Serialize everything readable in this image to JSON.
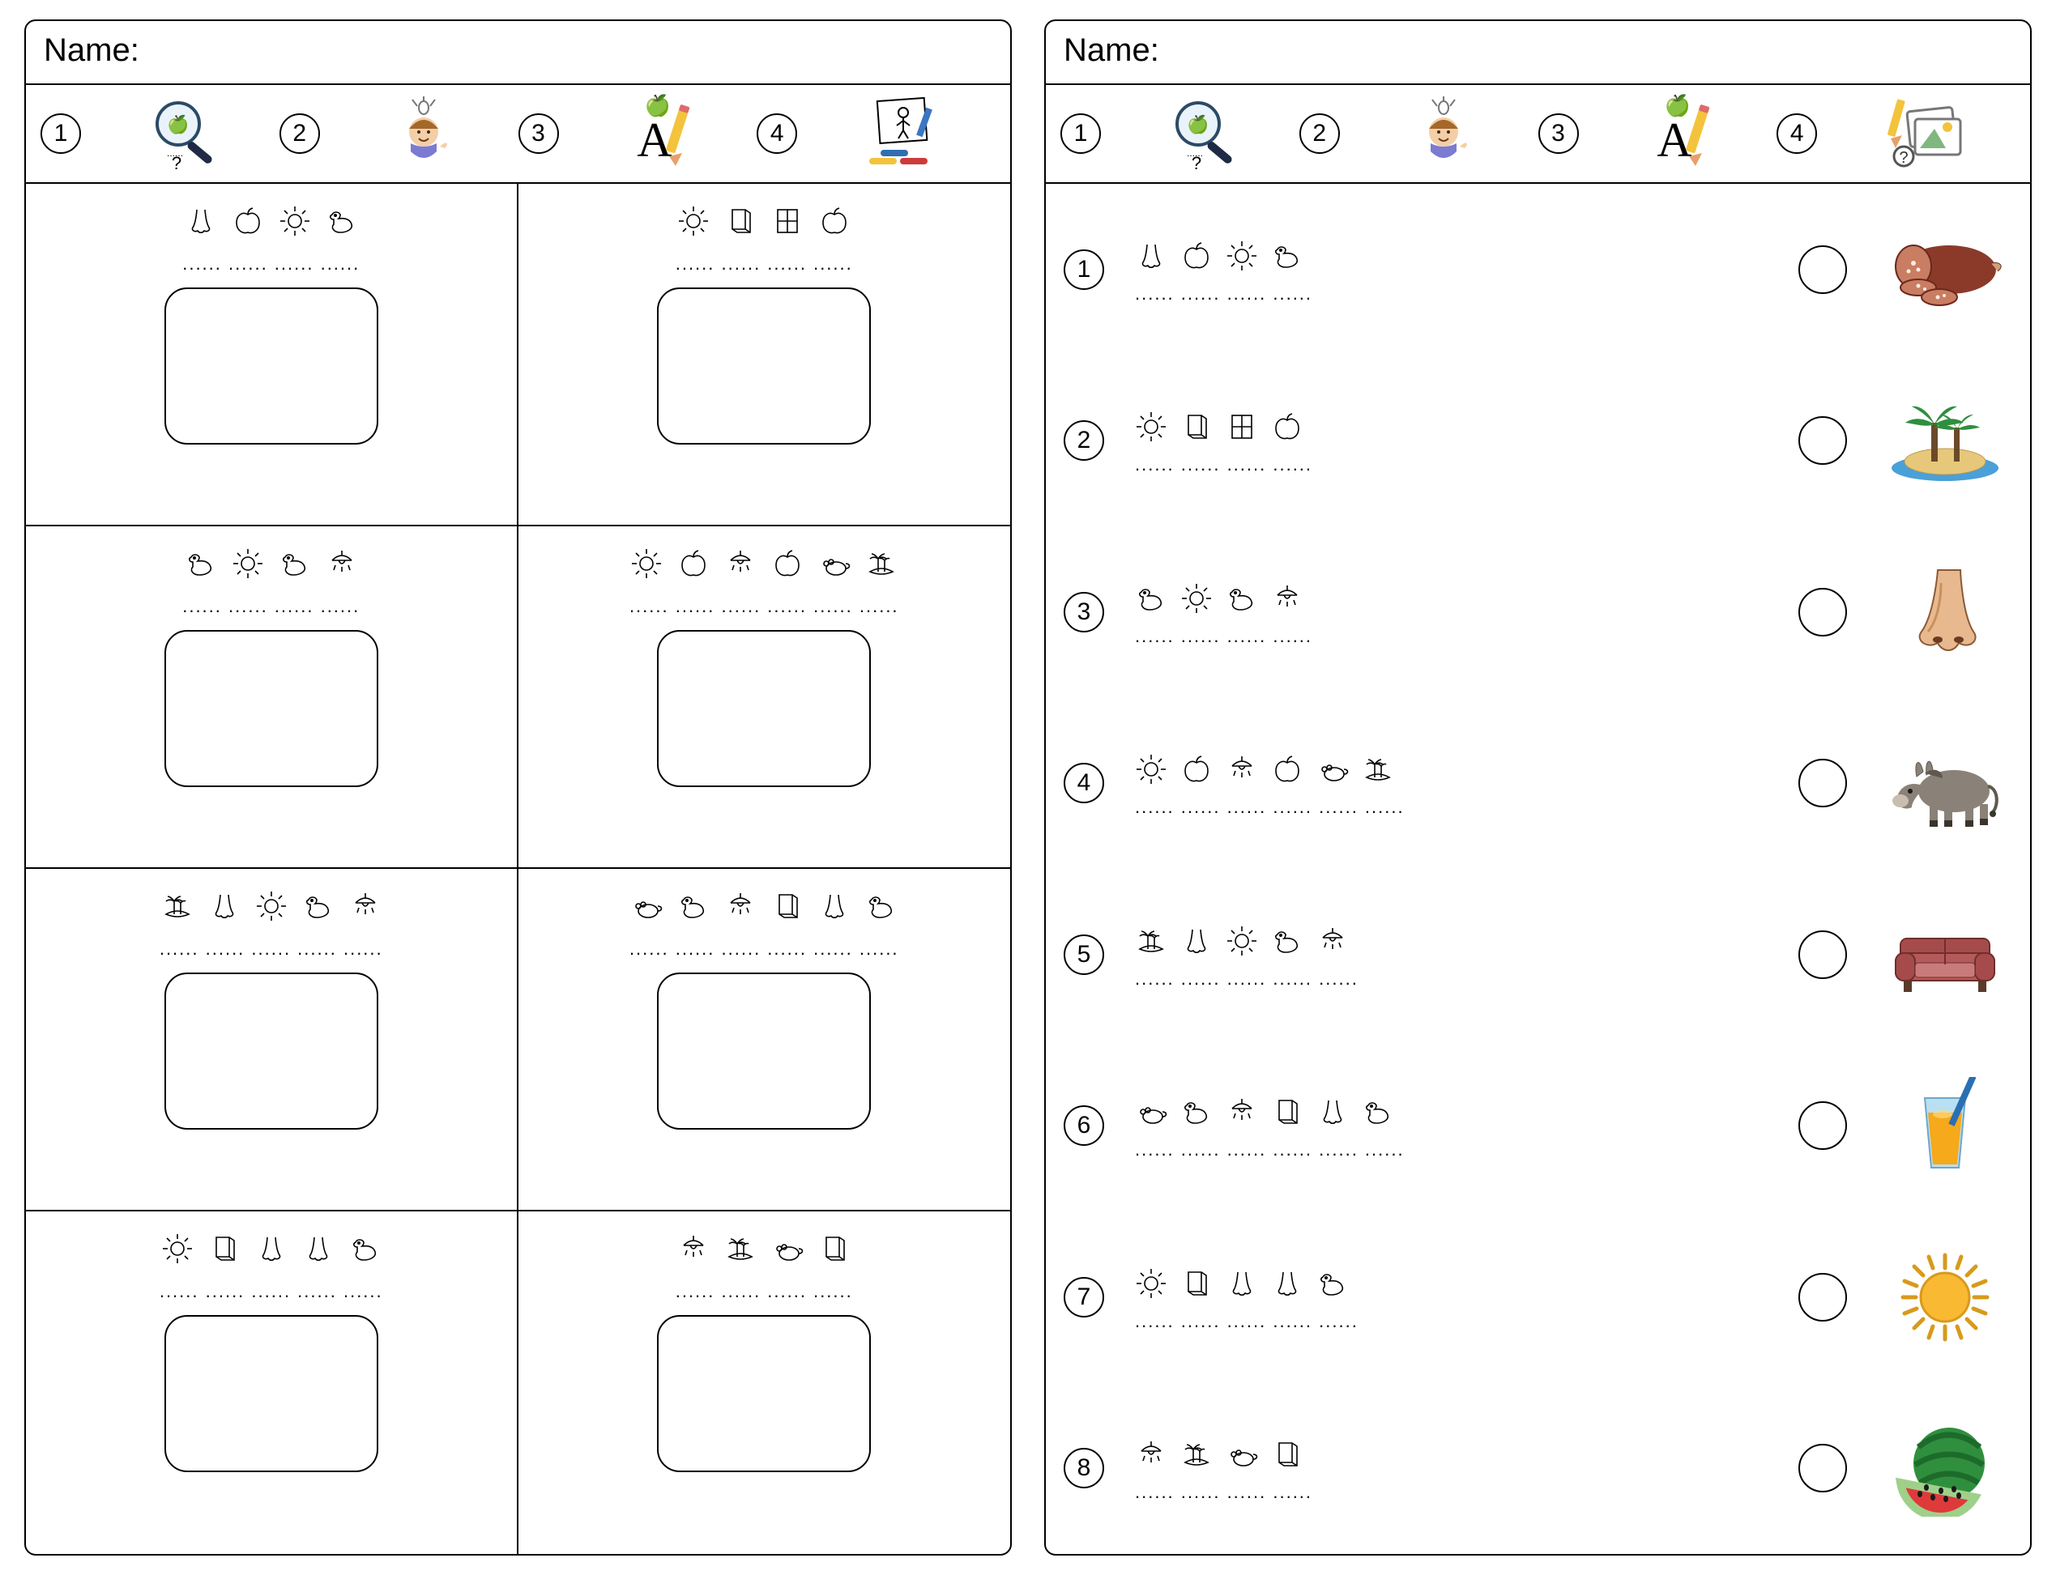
{
  "name_label": "Name:",
  "steps": [
    "1",
    "2",
    "3",
    "4"
  ],
  "left": {
    "cells": [
      {
        "icons": [
          "nose",
          "apple",
          "sun",
          "duck"
        ],
        "dots": 4
      },
      {
        "icons": [
          "sun",
          "book",
          "window",
          "apple"
        ],
        "dots": 4
      },
      {
        "icons": [
          "duck",
          "sun",
          "duck",
          "lamp"
        ],
        "dots": 4
      },
      {
        "icons": [
          "sun",
          "apple",
          "lamp",
          "apple",
          "mouse",
          "island"
        ],
        "dots": 6
      },
      {
        "icons": [
          "island",
          "nose",
          "sun",
          "duck",
          "lamp"
        ],
        "dots": 5
      },
      {
        "icons": [
          "mouse",
          "duck",
          "lamp",
          "book",
          "nose",
          "duck"
        ],
        "dots": 6
      },
      {
        "icons": [
          "sun",
          "book",
          "nose",
          "nose",
          "duck"
        ],
        "dots": 5
      },
      {
        "icons": [
          "lamp",
          "island",
          "mouse",
          "book"
        ],
        "dots": 4
      }
    ]
  },
  "right": {
    "rows": [
      {
        "n": "1",
        "icons": [
          "nose",
          "apple",
          "sun",
          "duck"
        ],
        "dots": 4,
        "answer": "salami"
      },
      {
        "n": "2",
        "icons": [
          "sun",
          "book",
          "window",
          "apple"
        ],
        "dots": 4,
        "answer": "island"
      },
      {
        "n": "3",
        "icons": [
          "duck",
          "sun",
          "duck",
          "lamp"
        ],
        "dots": 4,
        "answer": "nose"
      },
      {
        "n": "4",
        "icons": [
          "sun",
          "apple",
          "lamp",
          "apple",
          "mouse",
          "island"
        ],
        "dots": 6,
        "answer": "donkey"
      },
      {
        "n": "5",
        "icons": [
          "island",
          "nose",
          "sun",
          "duck",
          "lamp"
        ],
        "dots": 5,
        "answer": "sofa"
      },
      {
        "n": "6",
        "icons": [
          "mouse",
          "duck",
          "lamp",
          "book",
          "nose",
          "duck"
        ],
        "dots": 6,
        "answer": "juice"
      },
      {
        "n": "7",
        "icons": [
          "sun",
          "book",
          "nose",
          "nose",
          "duck"
        ],
        "dots": 5,
        "answer": "sun"
      },
      {
        "n": "8",
        "icons": [
          "lamp",
          "island",
          "mouse",
          "book"
        ],
        "dots": 4,
        "answer": "melon"
      }
    ]
  },
  "colors": {
    "sun": "#f9b932",
    "sun_ray": "#d89a1c",
    "leaf": "#2f8f3e",
    "melon_dark": "#1d6b2a",
    "melon_red": "#df3a3a",
    "melon_rind": "#9fd08a",
    "salami": "#8b3a2a",
    "salami_light": "#c97d62",
    "sea": "#4aa0d8",
    "sand": "#e7c87a",
    "palm_trunk": "#6b4a2a",
    "nose_skin": "#e8b98e",
    "nose_shadow": "#c98f5e",
    "donkey": "#8a8278",
    "donkey_dark": "#5f584e",
    "sofa": "#a64b4b",
    "sofa_dark": "#6e2f2f",
    "juice": "#f6a91a",
    "glass": "#b9dff2",
    "straw": "#2b6fb3"
  }
}
